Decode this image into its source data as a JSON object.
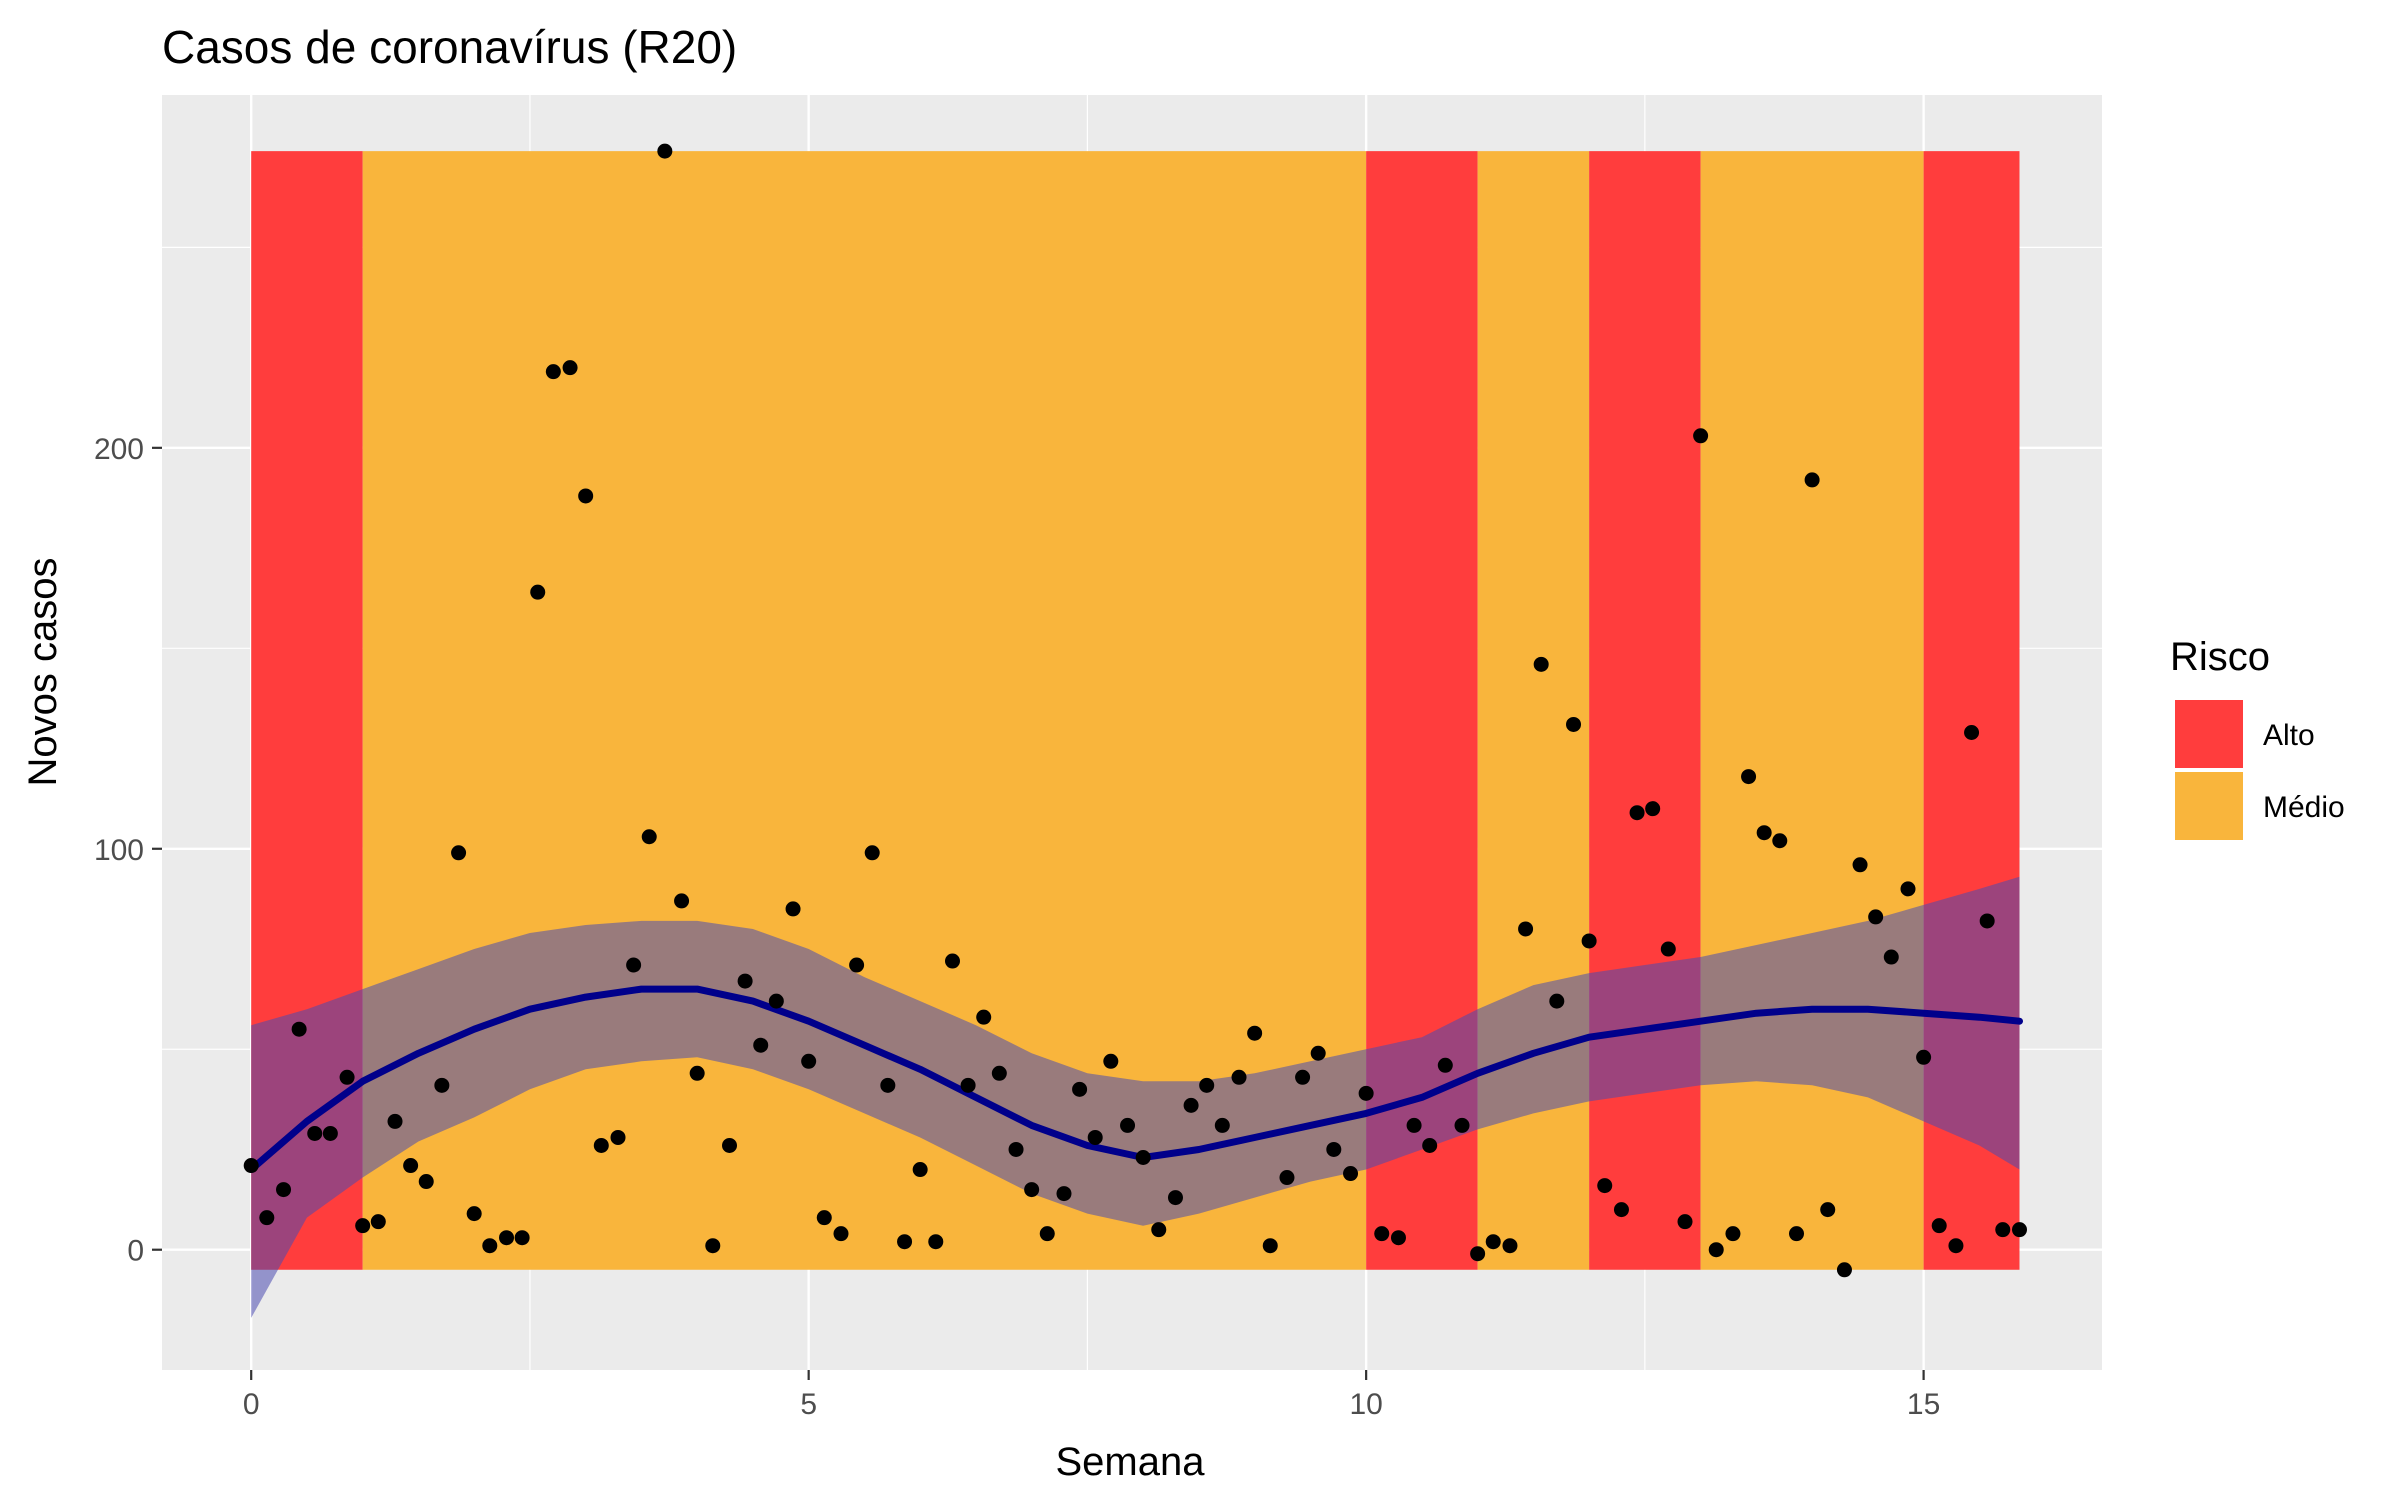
{
  "chart_data": {
    "type": "scatter",
    "title": "Casos de coronavírus (R20)",
    "xlabel": "Semana",
    "ylabel": "Novos casos",
    "xlim": [
      -0.8,
      16.6
    ],
    "ylim": [
      -30,
      288
    ],
    "x_ticks": [
      0,
      5,
      10,
      15
    ],
    "y_ticks": [
      0,
      100,
      200
    ],
    "grid": true,
    "legend_position": "right",
    "legend": {
      "title": "Risco",
      "entries": [
        {
          "label": "Alto",
          "color": "#ff3d3d"
        },
        {
          "label": "Médio",
          "color": "#f9b53c"
        }
      ]
    },
    "risk_bands": [
      {
        "x0": 0,
        "x1": 1,
        "risk": "Alto"
      },
      {
        "x0": 1,
        "x1": 10,
        "risk": "Médio"
      },
      {
        "x0": 10,
        "x1": 11,
        "risk": "Alto"
      },
      {
        "x0": 11,
        "x1": 12,
        "risk": "Médio"
      },
      {
        "x0": 12,
        "x1": 13,
        "risk": "Alto"
      },
      {
        "x0": 13,
        "x1": 15,
        "risk": "Médio"
      },
      {
        "x0": 15,
        "x1": 15.86,
        "risk": "Alto"
      }
    ],
    "band_y_range": [
      -5,
      274
    ],
    "points": {
      "x": [
        0.0,
        0.14,
        0.29,
        0.43,
        0.57,
        0.71,
        0.86,
        1.0,
        1.14,
        1.29,
        1.43,
        1.57,
        1.71,
        1.86,
        2.0,
        2.14,
        2.29,
        2.43,
        2.57,
        2.71,
        2.86,
        3.0,
        3.14,
        3.29,
        3.43,
        3.57,
        3.71,
        3.86,
        4.0,
        4.14,
        4.29,
        4.43,
        4.57,
        4.71,
        4.86,
        5.0,
        5.14,
        5.29,
        5.43,
        5.57,
        5.71,
        5.86,
        6.0,
        6.14,
        6.29,
        6.43,
        6.57,
        6.71,
        6.86,
        7.0,
        7.14,
        7.29,
        7.43,
        7.57,
        7.71,
        7.86,
        8.0,
        8.14,
        8.29,
        8.43,
        8.57,
        8.71,
        8.86,
        9.0,
        9.14,
        9.29,
        9.43,
        9.57,
        9.71,
        9.86,
        10.0,
        10.14,
        10.29,
        10.43,
        10.57,
        10.71,
        10.86,
        11.0,
        11.14,
        11.29,
        11.43,
        11.57,
        11.71,
        11.86,
        12.0,
        12.14,
        12.29,
        12.43,
        12.57,
        12.71,
        12.86,
        13.0,
        13.14,
        13.29,
        13.43,
        13.57,
        13.71,
        13.86,
        14.0,
        14.14,
        14.29,
        14.43,
        14.57,
        14.71,
        14.86,
        15.0,
        15.14,
        15.29,
        15.43,
        15.57,
        15.71,
        15.86
      ],
      "y": [
        21,
        8,
        15,
        55,
        29,
        29,
        43,
        6,
        7,
        32,
        21,
        17,
        41,
        99,
        9,
        1,
        3,
        3,
        164,
        219,
        220,
        188,
        26,
        28,
        71,
        103,
        274,
        87,
        44,
        1,
        26,
        67,
        51,
        62,
        85,
        47,
        8,
        4,
        71,
        99,
        41,
        2,
        20,
        2,
        72,
        41,
        58,
        44,
        25,
        15,
        4,
        14,
        40,
        28,
        47,
        31,
        23,
        5,
        13,
        36,
        41,
        31,
        43,
        54,
        1,
        18,
        43,
        49,
        25,
        19,
        39,
        4,
        3,
        31,
        26,
        46,
        31,
        -1,
        2,
        1,
        80,
        146,
        62,
        131,
        77,
        16,
        10,
        109,
        110,
        75,
        7,
        203,
        0,
        4,
        118,
        104,
        102,
        4,
        192,
        10,
        -5,
        96,
        83,
        73,
        90,
        48,
        6,
        1,
        129,
        82,
        5,
        5
      ]
    },
    "smooth": {
      "x": [
        0,
        0.5,
        1,
        1.5,
        2,
        2.5,
        3,
        3.5,
        4,
        4.5,
        5,
        5.5,
        6,
        6.5,
        7,
        7.5,
        8,
        8.5,
        9,
        9.5,
        10,
        10.5,
        11,
        11.5,
        12,
        12.5,
        13,
        13.5,
        14,
        14.5,
        15,
        15.5,
        15.86
      ],
      "y": [
        20,
        32,
        42,
        49,
        55,
        60,
        63,
        65,
        65,
        62,
        57,
        51,
        45,
        38,
        31,
        26,
        23,
        25,
        28,
        31,
        34,
        38,
        44,
        49,
        53,
        55,
        57,
        59,
        60,
        60,
        59,
        58,
        57
      ],
      "ymin": [
        -17,
        8,
        18,
        27,
        33,
        40,
        45,
        47,
        48,
        45,
        40,
        34,
        28,
        21,
        14,
        9,
        6,
        9,
        13,
        17,
        20,
        25,
        30,
        34,
        37,
        39,
        41,
        42,
        41,
        38,
        32,
        26,
        20
      ],
      "ymax": [
        56,
        60,
        65,
        70,
        75,
        79,
        81,
        82,
        82,
        80,
        75,
        68,
        62,
        56,
        49,
        44,
        42,
        42,
        44,
        47,
        50,
        53,
        60,
        66,
        69,
        71,
        73,
        76,
        79,
        82,
        86,
        90,
        93
      ]
    }
  },
  "colors": {
    "panel_bg": "#ebebeb",
    "grid": "#ffffff",
    "alto": "#ff3d3d",
    "medio": "#f9b53c",
    "smooth_line": "#00008b",
    "ribbon": "#4a4ab0",
    "point": "#000000"
  }
}
